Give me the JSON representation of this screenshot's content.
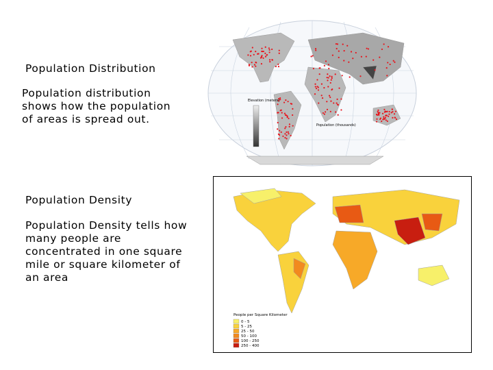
{
  "slide": {
    "sections": [
      {
        "heading": "Population Distribution",
        "body_lines": [
          "Population distribution",
          "shows how the population",
          "of areas is spread out."
        ]
      },
      {
        "heading": "Population Density",
        "body_lines": [
          "Population Density tells how",
          "many people are",
          "concentrated in one square",
          "mile or square kilometer of",
          "an area"
        ]
      }
    ]
  },
  "maps": {
    "distribution": {
      "elevation_title": "Elevation (meters)",
      "population_title": "Population (thousands)"
    },
    "density": {
      "legend_title": "People per Square Kilometer",
      "legend": [
        {
          "label": "0 - 5",
          "color": "#f7f06a"
        },
        {
          "label": "5 - 25",
          "color": "#f9d23c"
        },
        {
          "label": "25 - 50",
          "color": "#f7a928"
        },
        {
          "label": "50 - 100",
          "color": "#f28a1e"
        },
        {
          "label": "100 - 250",
          "color": "#e85a14"
        },
        {
          "label": "250 - 400",
          "color": "#c81e10"
        }
      ]
    }
  }
}
